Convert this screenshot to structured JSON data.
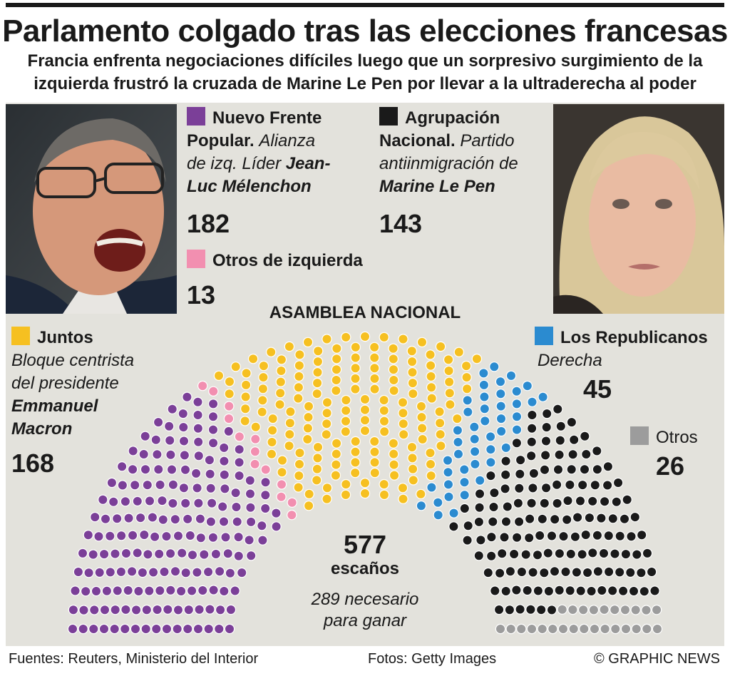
{
  "header": {
    "title": "Parlamento colgado tras las elecciones francesas",
    "subtitle_line1": "Francia enfrenta negociaciones difíciles luego que un sorpresivo surgimiento de la",
    "subtitle_line2": "izquierda frustró la cruzada de Marine Le Pen por llevar a la ultraderecha al poder"
  },
  "assembly_label": "ASAMBLEA NACIONAL",
  "center": {
    "total": "577",
    "seats_word": "escaños",
    "majority_line1": "289 necesario",
    "majority_line2": "para ganar"
  },
  "legend": {
    "nfp": {
      "name1": "Nuevo Frente",
      "name2": "Popular.",
      "desc_a": "Alianza",
      "desc_b": "de izq. Líder",
      "leader_a": "Jean-",
      "leader_b": "Luc Mélenchon",
      "seats": "182"
    },
    "rn": {
      "name1": "Agrupación",
      "name2": "Nacional.",
      "desc_a": "Partido",
      "desc_b": "antiinmigración de",
      "leader": "Marine Le Pen",
      "seats": "143"
    },
    "otros_izq": {
      "name": "Otros de izquierda",
      "seats": "13"
    },
    "juntos": {
      "name": "Juntos",
      "desc1": "Bloque centrista",
      "desc2": "del presidente",
      "leader1": "Emmanuel",
      "leader2": "Macron",
      "seats": "168"
    },
    "lr": {
      "name": "Los Republicanos",
      "desc": "Derecha",
      "seats": "45"
    },
    "otros": {
      "name": "Otros",
      "seats": "26"
    }
  },
  "footer": {
    "sources": "Fuentes: Reuters, Ministerio del Interior",
    "photos": "Fotos: Getty Images",
    "credit": "© GRAPHIC NEWS"
  },
  "chart_data": {
    "type": "parliament",
    "title": "ASAMBLEA NACIONAL",
    "total_seats": 577,
    "majority": 289,
    "series": [
      {
        "name": "Nuevo Frente Popular",
        "value": 182,
        "color": "#7b3f98"
      },
      {
        "name": "Otros de izquierda",
        "value": 13,
        "color": "#f28fb0"
      },
      {
        "name": "Juntos",
        "value": 168,
        "color": "#f6c021"
      },
      {
        "name": "Los Republicanos",
        "value": 45,
        "color": "#2b8bd0"
      },
      {
        "name": "Agrupación Nacional",
        "value": 143,
        "color": "#1a1a1a"
      },
      {
        "name": "Otros",
        "value": 26,
        "color": "#9c9c9c"
      }
    ]
  }
}
